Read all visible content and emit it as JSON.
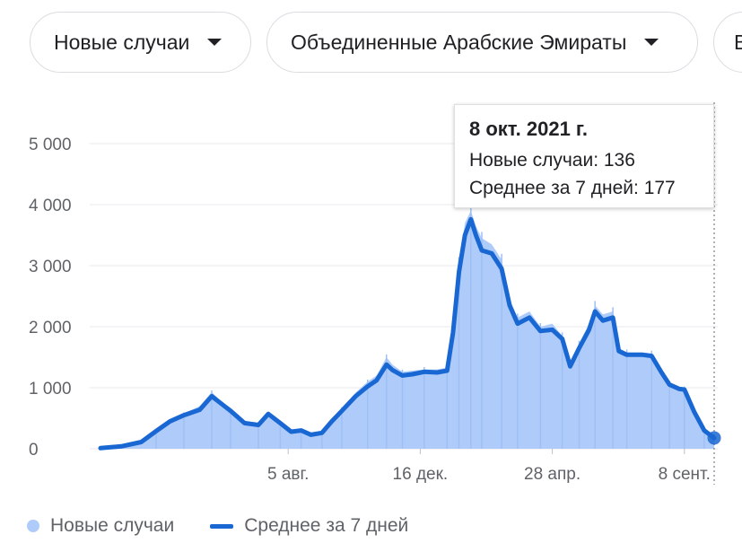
{
  "filters": {
    "metric": {
      "label": "Новые случаи",
      "icon": "caret-down-icon"
    },
    "region": {
      "label": "Объединенные Арабские Эмираты",
      "icon": "caret-down-icon"
    },
    "more": {
      "label": "В"
    }
  },
  "tooltip": {
    "date": "8 окт. 2021 г.",
    "new_cases": "Новые случаи: 136",
    "avg7": "Среднее за 7 дней: 177"
  },
  "legend": {
    "daily": "Новые случаи",
    "avg": "Среднее за 7 дней"
  },
  "colors": {
    "area": "#aecbfa",
    "line": "#1967d2",
    "grid": "#e8eaed",
    "text": "#5f6368"
  },
  "chart_data": {
    "type": "area",
    "title": "",
    "xlabel": "",
    "ylabel": "",
    "ylim": [
      0,
      5000
    ],
    "yticks": [
      0,
      1000,
      2000,
      3000,
      4000,
      5000
    ],
    "ytick_labels": [
      "0",
      "1 000",
      "2 000",
      "3 000",
      "4 000",
      "5 000"
    ],
    "xlim": [
      "2020-01-29",
      "2021-10-08"
    ],
    "xticks": [
      {
        "date": "2020-08-05",
        "label": "5 авг."
      },
      {
        "date": "2020-12-16",
        "label": "16 дек."
      },
      {
        "date": "2021-04-28",
        "label": "28 апр."
      },
      {
        "date": "2021-09-08",
        "label": "8 сент."
      }
    ],
    "grid": true,
    "legend_position": "bottom-left",
    "series": [
      {
        "name": "Среднее за 7 дней",
        "kind": "line",
        "points": [
          [
            "2020-01-29",
            10
          ],
          [
            "2020-02-19",
            40
          ],
          [
            "2020-03-10",
            110
          ],
          [
            "2020-03-25",
            290
          ],
          [
            "2020-04-08",
            450
          ],
          [
            "2020-04-22",
            550
          ],
          [
            "2020-05-08",
            640
          ],
          [
            "2020-05-20",
            860
          ],
          [
            "2020-05-28",
            760
          ],
          [
            "2020-06-08",
            620
          ],
          [
            "2020-06-22",
            420
          ],
          [
            "2020-07-06",
            390
          ],
          [
            "2020-07-16",
            570
          ],
          [
            "2020-07-28",
            420
          ],
          [
            "2020-08-08",
            280
          ],
          [
            "2020-08-18",
            300
          ],
          [
            "2020-08-28",
            230
          ],
          [
            "2020-09-08",
            260
          ],
          [
            "2020-09-18",
            450
          ],
          [
            "2020-09-28",
            620
          ],
          [
            "2020-10-12",
            860
          ],
          [
            "2020-10-24",
            1020
          ],
          [
            "2020-11-02",
            1120
          ],
          [
            "2020-11-12",
            1380
          ],
          [
            "2020-11-18",
            1290
          ],
          [
            "2020-11-28",
            1200
          ],
          [
            "2020-12-08",
            1220
          ],
          [
            "2020-12-20",
            1260
          ],
          [
            "2021-01-02",
            1250
          ],
          [
            "2021-01-12",
            1280
          ],
          [
            "2021-01-18",
            1900
          ],
          [
            "2021-01-24",
            2900
          ],
          [
            "2021-01-30",
            3500
          ],
          [
            "2021-02-05",
            3760
          ],
          [
            "2021-02-10",
            3500
          ],
          [
            "2021-02-16",
            3250
          ],
          [
            "2021-02-26",
            3200
          ],
          [
            "2021-03-08",
            2950
          ],
          [
            "2021-03-16",
            2350
          ],
          [
            "2021-03-24",
            2050
          ],
          [
            "2021-04-05",
            2150
          ],
          [
            "2021-04-16",
            1930
          ],
          [
            "2021-04-28",
            1950
          ],
          [
            "2021-05-08",
            1800
          ],
          [
            "2021-05-16",
            1350
          ],
          [
            "2021-05-25",
            1650
          ],
          [
            "2021-06-04",
            1950
          ],
          [
            "2021-06-10",
            2250
          ],
          [
            "2021-06-18",
            2100
          ],
          [
            "2021-06-28",
            2150
          ],
          [
            "2021-07-04",
            1600
          ],
          [
            "2021-07-12",
            1540
          ],
          [
            "2021-07-28",
            1540
          ],
          [
            "2021-08-06",
            1520
          ],
          [
            "2021-08-16",
            1250
          ],
          [
            "2021-08-24",
            1050
          ],
          [
            "2021-09-03",
            980
          ],
          [
            "2021-09-08",
            970
          ],
          [
            "2021-09-18",
            600
          ],
          [
            "2021-09-28",
            300
          ],
          [
            "2021-10-08",
            177
          ]
        ]
      },
      {
        "name": "Новые случаи",
        "kind": "area",
        "points": [
          [
            "2020-01-29",
            5
          ],
          [
            "2020-02-19",
            40
          ],
          [
            "2020-03-10",
            120
          ],
          [
            "2020-03-25",
            300
          ],
          [
            "2020-04-08",
            480
          ],
          [
            "2020-04-22",
            580
          ],
          [
            "2020-05-08",
            700
          ],
          [
            "2020-05-20",
            930
          ],
          [
            "2020-05-28",
            800
          ],
          [
            "2020-06-08",
            650
          ],
          [
            "2020-06-22",
            450
          ],
          [
            "2020-07-06",
            420
          ],
          [
            "2020-07-16",
            600
          ],
          [
            "2020-07-28",
            450
          ],
          [
            "2020-08-08",
            300
          ],
          [
            "2020-08-18",
            320
          ],
          [
            "2020-08-28",
            250
          ],
          [
            "2020-09-08",
            280
          ],
          [
            "2020-09-18",
            480
          ],
          [
            "2020-09-28",
            660
          ],
          [
            "2020-10-12",
            920
          ],
          [
            "2020-10-24",
            1100
          ],
          [
            "2020-11-02",
            1200
          ],
          [
            "2020-11-12",
            1500
          ],
          [
            "2020-11-18",
            1380
          ],
          [
            "2020-11-28",
            1260
          ],
          [
            "2020-12-08",
            1280
          ],
          [
            "2020-12-20",
            1300
          ],
          [
            "2021-01-02",
            1300
          ],
          [
            "2021-01-12",
            1330
          ],
          [
            "2021-01-18",
            2000
          ],
          [
            "2021-01-24",
            3050
          ],
          [
            "2021-01-30",
            3700
          ],
          [
            "2021-02-05",
            3900
          ],
          [
            "2021-02-10",
            3650
          ],
          [
            "2021-02-16",
            3450
          ],
          [
            "2021-02-26",
            3350
          ],
          [
            "2021-03-08",
            3100
          ],
          [
            "2021-03-16",
            2450
          ],
          [
            "2021-03-24",
            2150
          ],
          [
            "2021-04-05",
            2250
          ],
          [
            "2021-04-16",
            2000
          ],
          [
            "2021-04-28",
            2050
          ],
          [
            "2021-05-08",
            1850
          ],
          [
            "2021-05-16",
            1400
          ],
          [
            "2021-05-25",
            1720
          ],
          [
            "2021-06-04",
            2050
          ],
          [
            "2021-06-10",
            2350
          ],
          [
            "2021-06-18",
            2200
          ],
          [
            "2021-06-28",
            2250
          ],
          [
            "2021-07-04",
            1650
          ],
          [
            "2021-07-12",
            1580
          ],
          [
            "2021-07-28",
            1580
          ],
          [
            "2021-08-06",
            1560
          ],
          [
            "2021-08-16",
            1300
          ],
          [
            "2021-08-24",
            1080
          ],
          [
            "2021-09-03",
            1000
          ],
          [
            "2021-09-08",
            990
          ],
          [
            "2021-09-18",
            620
          ],
          [
            "2021-09-28",
            300
          ],
          [
            "2021-10-08",
            136
          ]
        ]
      }
    ],
    "highlight": {
      "date": "2021-10-08",
      "new_cases": 136,
      "avg7": 177
    }
  }
}
